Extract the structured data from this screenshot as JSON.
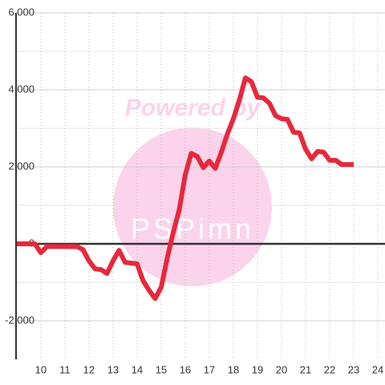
{
  "chart_data": {
    "type": "line",
    "watermark": "Powered by",
    "watermark_logo": "PSPimn",
    "x": [
      9,
      9.25,
      9.5,
      9.75,
      10,
      10.25,
      10.5,
      10.75,
      11,
      11.25,
      11.5,
      11.75,
      12,
      12.25,
      12.5,
      12.75,
      13,
      13.25,
      13.5,
      13.75,
      14,
      14.25,
      14.5,
      14.75,
      15,
      15.25,
      15.5,
      15.75,
      16,
      16.25,
      16.5,
      16.75,
      17,
      17.25,
      17.5,
      17.75,
      18,
      18.25,
      18.5,
      18.75,
      19,
      19.25,
      19.5,
      19.75,
      20,
      20.25,
      20.5,
      20.75,
      21,
      21.25,
      21.5,
      21.75,
      22,
      22.25,
      22.5,
      22.75,
      23
    ],
    "series": [
      {
        "color": "#e8283c",
        "values": [
          0,
          0,
          0,
          0,
          -230,
          -70,
          -70,
          -70,
          -70,
          -70,
          -70,
          -150,
          -440,
          -650,
          -670,
          -770,
          -440,
          -170,
          -480,
          -500,
          -520,
          -960,
          -1210,
          -1420,
          -1130,
          -380,
          290,
          880,
          1790,
          2350,
          2270,
          1980,
          2150,
          1960,
          2380,
          2850,
          3250,
          3730,
          4310,
          4210,
          3810,
          3790,
          3650,
          3330,
          3250,
          3230,
          2900,
          2880,
          2460,
          2210,
          2400,
          2380,
          2170,
          2170,
          2060,
          2060,
          2060
        ]
      }
    ],
    "xlim": [
      8.97,
      24.3
    ],
    "xticks": [
      10,
      11,
      12,
      13,
      14,
      15,
      16,
      17,
      18,
      19,
      20,
      21,
      22,
      23,
      24
    ],
    "ylim": [
      -3000,
      6000
    ],
    "yticks": [
      {
        "value": 6000,
        "label": "6,000"
      },
      {
        "value": 4000,
        "label": "4,000"
      },
      {
        "value": 2000,
        "label": "2,000"
      },
      0,
      {
        "value": -2000,
        "label": "-2,000"
      }
    ],
    "y_minor_ticks": [
      5000,
      3000,
      1000,
      -1000
    ],
    "grid": true
  }
}
